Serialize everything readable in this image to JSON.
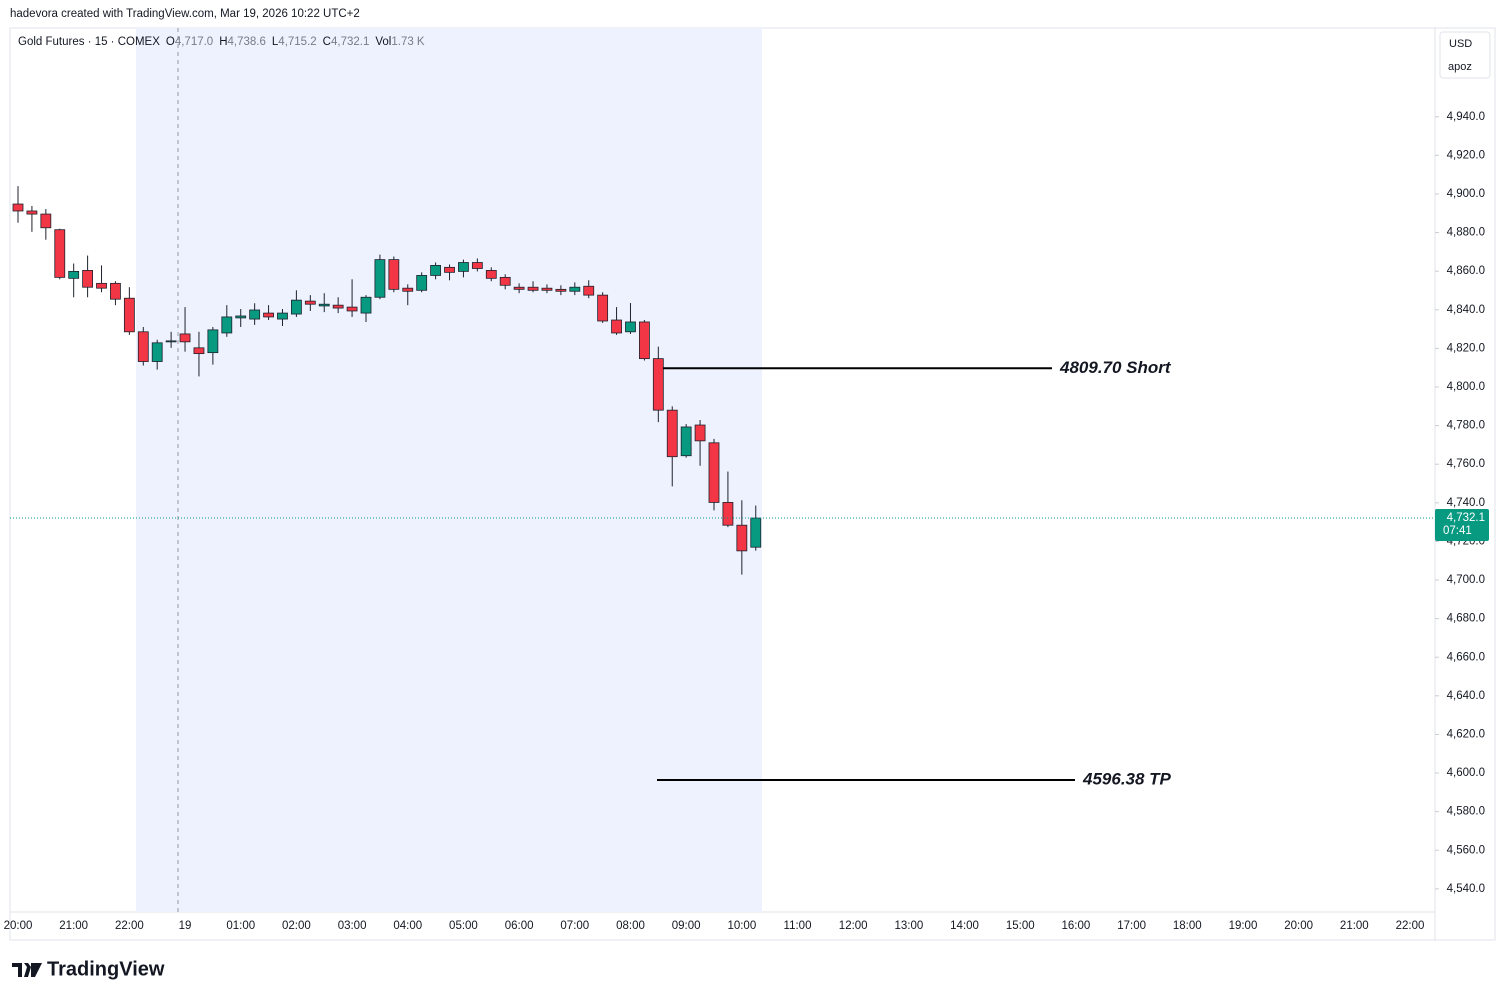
{
  "header": "hadevora created with TradingView.com, Mar 19, 2026 10:22 UTC+2",
  "chart_data": {
    "type": "candlestick",
    "symbol": "Gold Futures · 15 · COMEX",
    "legend": [
      {
        "key": "O",
        "value": "4,717.0"
      },
      {
        "key": "H",
        "value": "4,738.6"
      },
      {
        "key": "L",
        "value": "4,715.2"
      },
      {
        "key": "C",
        "value": "4,732.1"
      },
      {
        "key": "Vol",
        "value": "1.73 K"
      }
    ],
    "currency": "USD",
    "scale_note": "apoz",
    "time_labels": [
      "20:00",
      "21:00",
      "22:00",
      "19",
      "01:00",
      "02:00",
      "03:00",
      "04:00",
      "05:00",
      "06:00",
      "07:00",
      "08:00",
      "09:00",
      "10:00",
      "11:00",
      "12:00",
      "13:00",
      "14:00",
      "15:00",
      "16:00",
      "17:00",
      "18:00",
      "19:00",
      "20:00",
      "21:00",
      "22:00"
    ],
    "open": [
      4894.8,
      4891.2,
      4889.6,
      4881.5,
      4856.3,
      4860.4,
      4853.7,
      4853.7,
      4846.0,
      4828.6,
      4813.2,
      4823.4,
      4827.5,
      4820.3,
      4817.8,
      4828.0,
      4835.8,
      4835.2,
      4838.3,
      4835.2,
      4837.8,
      4844.5,
      4842.0,
      4842.4,
      4841.4,
      4838.3,
      4846.5,
      4866.0,
      4851.2,
      4850.1,
      4857.8,
      4862.0,
      4859.9,
      4864.5,
      4860.4,
      4856.8,
      4851.7,
      4851.7,
      4851.2,
      4850.6,
      4849.6,
      4852.2,
      4847.6,
      4834.7,
      4828.6,
      4833.7,
      4814.7,
      4788.0,
      4764.4,
      4780.3,
      4771.1,
      4740.2,
      4728.4,
      4717.0
    ],
    "high": [
      4904.1,
      4893.8,
      4892.2,
      4882.0,
      4864.0,
      4868.1,
      4863.0,
      4854.8,
      4851.7,
      4831.1,
      4824.5,
      4828.6,
      4841.4,
      4828.6,
      4831.1,
      4842.4,
      4840.4,
      4843.4,
      4842.4,
      4840.4,
      4850.1,
      4847.6,
      4848.6,
      4846.5,
      4855.8,
      4847.6,
      4868.6,
      4867.6,
      4853.2,
      4859.4,
      4864.5,
      4863.5,
      4866.0,
      4866.6,
      4862.0,
      4858.4,
      4853.7,
      4854.8,
      4853.2,
      4852.7,
      4854.2,
      4855.3,
      4849.1,
      4841.4,
      4843.5,
      4834.7,
      4820.9,
      4790.0,
      4780.8,
      4782.9,
      4773.1,
      4756.2,
      4741.3,
      4738.6
    ],
    "low": [
      4885.1,
      4880.4,
      4876.3,
      4855.8,
      4846.5,
      4846.5,
      4849.1,
      4842.4,
      4827.0,
      4811.1,
      4809.0,
      4820.3,
      4818.3,
      4805.5,
      4811.6,
      4826.0,
      4831.1,
      4832.2,
      4834.7,
      4831.6,
      4836.3,
      4839.4,
      4838.8,
      4838.3,
      4836.3,
      4833.7,
      4845.5,
      4849.1,
      4842.4,
      4849.1,
      4855.8,
      4855.3,
      4856.8,
      4859.9,
      4854.8,
      4850.6,
      4848.6,
      4849.1,
      4848.6,
      4847.6,
      4847.6,
      4846.0,
      4833.2,
      4827.0,
      4827.5,
      4813.7,
      4781.8,
      4748.5,
      4763.4,
      4759.2,
      4736.1,
      4727.4,
      4702.8,
      4715.2
    ],
    "close": [
      4891.2,
      4889.6,
      4882.5,
      4856.8,
      4859.9,
      4851.7,
      4851.2,
      4845.5,
      4828.6,
      4813.2,
      4822.9,
      4823.9,
      4823.4,
      4817.3,
      4829.6,
      4836.3,
      4836.8,
      4839.9,
      4836.3,
      4838.3,
      4845.0,
      4842.9,
      4842.9,
      4840.9,
      4839.4,
      4846.5,
      4866.0,
      4850.6,
      4849.6,
      4857.8,
      4863.0,
      4859.4,
      4864.5,
      4861.4,
      4856.3,
      4852.7,
      4850.6,
      4850.1,
      4850.1,
      4849.6,
      4851.7,
      4847.6,
      4834.2,
      4828.0,
      4833.7,
      4814.7,
      4788.0,
      4763.9,
      4779.3,
      4772.1,
      4740.2,
      4728.4,
      4715.1,
      4732.1
    ],
    "up_color": "#089981",
    "down_color": "#f23645",
    "ylim": [
      4528,
      4986
    ],
    "yticks": [
      {
        "value": 4540,
        "label": "4,540.0"
      },
      {
        "value": 4560,
        "label": "4,560.0"
      },
      {
        "value": 4580,
        "label": "4,580.0"
      },
      {
        "value": 4600,
        "label": "4,600.0"
      },
      {
        "value": 4620,
        "label": "4,620.0"
      },
      {
        "value": 4640,
        "label": "4,640.0"
      },
      {
        "value": 4660,
        "label": "4,660.0"
      },
      {
        "value": 4680,
        "label": "4,680.0"
      },
      {
        "value": 4700,
        "label": "4,700.0"
      },
      {
        "value": 4720,
        "label": "4,720.0"
      },
      {
        "value": 4740,
        "label": "4,740.0"
      },
      {
        "value": 4760,
        "label": "4,760.0"
      },
      {
        "value": 4780,
        "label": "4,780.0"
      },
      {
        "value": 4800,
        "label": "4,800.0"
      },
      {
        "value": 4820,
        "label": "4,820.0"
      },
      {
        "value": 4840,
        "label": "4,840.0"
      },
      {
        "value": 4860,
        "label": "4,860.0"
      },
      {
        "value": 4880,
        "label": "4,880.0"
      },
      {
        "value": 4900,
        "label": "4,900.0"
      },
      {
        "value": 4920,
        "label": "4,920.0"
      },
      {
        "value": 4940,
        "label": "4,940.0"
      }
    ],
    "last_price": {
      "value": 4732.1,
      "label": "4,732.1"
    },
    "countdown": "07:41",
    "levels": [
      {
        "value": 4809.7,
        "label": "4809.70 Short"
      },
      {
        "value": 4596.38,
        "label": "4596.38 TP"
      }
    ]
  },
  "footer": "TradingView"
}
